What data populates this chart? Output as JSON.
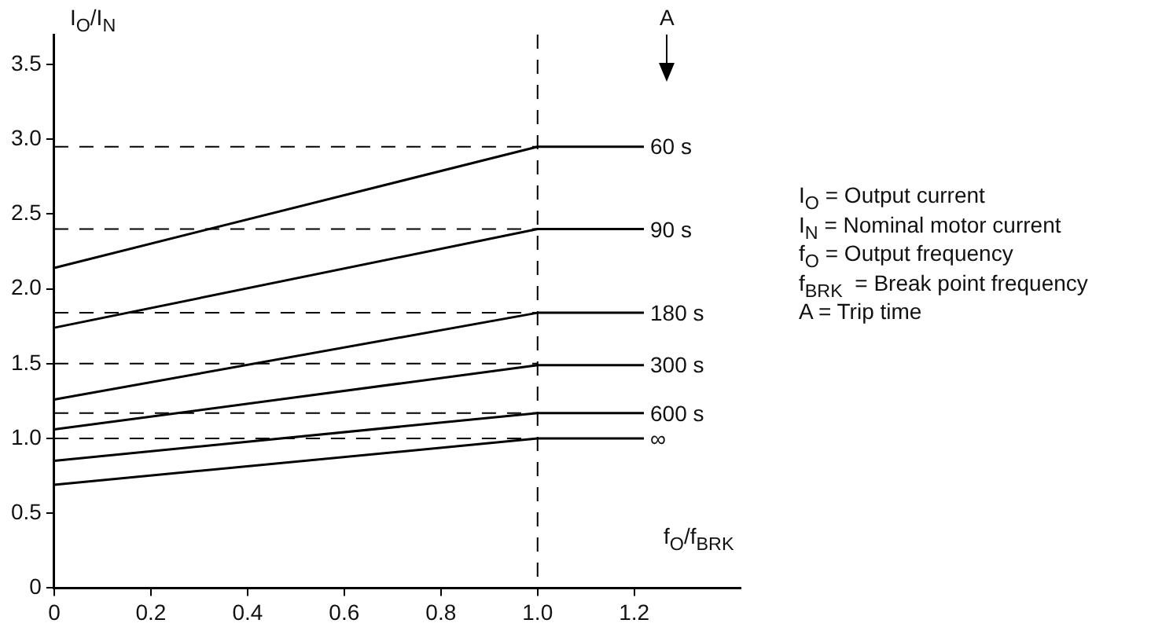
{
  "chart_data": {
    "type": "line",
    "xlabel": "f$_{O}$/f$_{BRK}$",
    "ylabel": "I$_{O}$/I$_{N}$",
    "xlim": [
      0,
      1.42
    ],
    "ylim": [
      0,
      3.7
    ],
    "xticks": [
      0,
      0.2,
      0.4,
      0.6,
      0.8,
      {
        "value": 1,
        "label": "1.0"
      },
      1.2
    ],
    "yticks": [
      0,
      0.5,
      {
        "value": 1,
        "label": "1.0"
      },
      1.5,
      {
        "value": 2,
        "label": "2.0"
      },
      2.5,
      {
        "value": 3,
        "label": "3.0"
      },
      3.5
    ],
    "grid": false,
    "legend": false,
    "marker": "none",
    "line_style": "solid",
    "series": [
      {
        "name": "60 s",
        "color": "#000000",
        "x": [
          0,
          1,
          1.22
        ],
        "values": [
          2.14,
          2.95,
          2.95
        ]
      },
      {
        "name": "90 s",
        "color": "#000000",
        "x": [
          0,
          1,
          1.22
        ],
        "values": [
          1.74,
          2.4,
          2.4
        ]
      },
      {
        "name": "180 s",
        "color": "#000000",
        "x": [
          0,
          1,
          1.22
        ],
        "values": [
          1.26,
          1.84,
          1.84
        ]
      },
      {
        "name": "300 s",
        "color": "#000000",
        "x": [
          0,
          1,
          1.22
        ],
        "values": [
          1.06,
          1.49,
          1.49
        ]
      },
      {
        "name": "600 s",
        "color": "#000000",
        "x": [
          0,
          1,
          1.22
        ],
        "values": [
          0.85,
          1.17,
          1.17
        ]
      },
      {
        "name": "∞",
        "color": "#000000",
        "x": [
          0,
          1,
          1.22
        ],
        "values": [
          0.69,
          1.0,
          1.0
        ]
      }
    ],
    "ref_lines": [
      {
        "axis": "y",
        "value": 2.95,
        "color": "#000000",
        "line_style": "dashed"
      },
      {
        "axis": "y",
        "value": 2.4,
        "color": "#000000",
        "line_style": "dashed"
      },
      {
        "axis": "y",
        "value": 1.84,
        "color": "#000000",
        "line_style": "dashed"
      },
      {
        "axis": "y",
        "value": 1.5,
        "color": "#000000",
        "line_style": "dashed"
      },
      {
        "axis": "y",
        "value": 1.17,
        "color": "#000000",
        "line_style": "dashed"
      },
      {
        "axis": "y",
        "value": 1.0,
        "color": "#000000",
        "line_style": "dashed"
      },
      {
        "axis": "x",
        "value": 1.0,
        "color": "#000000",
        "line_style": "dashed"
      }
    ],
    "annotations": [
      "A",
      "I$_{O}$ = Output current",
      "I$_{N}$ = Nominal motor current",
      "f$_{O}$ = Output frequency",
      "f$_{BRK}$  = Break point frequency",
      "A = Trip time"
    ]
  }
}
